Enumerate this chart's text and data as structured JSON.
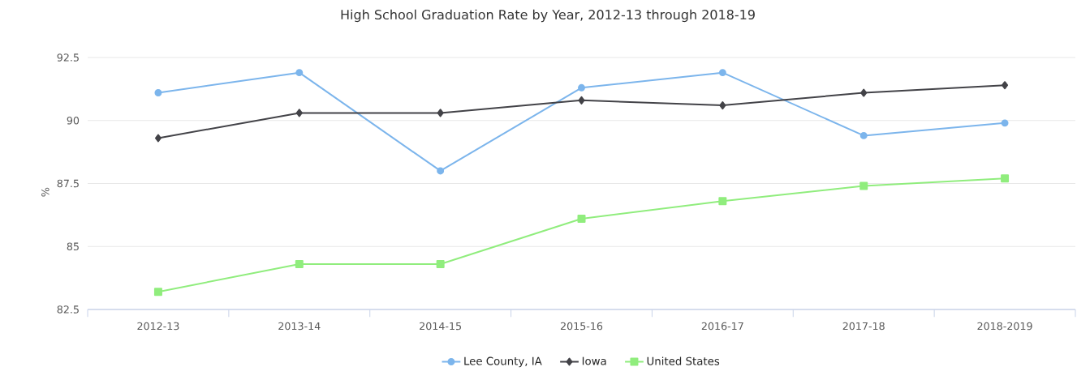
{
  "chart_data": {
    "type": "line",
    "title": "High School Graduation Rate by Year, 2012-13 through 2018-19",
    "ylabel": "%",
    "categories": [
      "2012-13",
      "2013-14",
      "2014-15",
      "2015-16",
      "2016-17",
      "2017-18",
      "2018-2019"
    ],
    "series": [
      {
        "name": "Lee County, IA",
        "color": "#7cb5ec",
        "marker": "circle",
        "values": [
          91.1,
          91.9,
          88.0,
          91.3,
          91.9,
          89.4,
          89.9
        ]
      },
      {
        "name": "Iowa",
        "color": "#434348",
        "marker": "diamond",
        "values": [
          89.3,
          90.3,
          90.3,
          90.8,
          90.6,
          91.1,
          91.4
        ]
      },
      {
        "name": "United States",
        "color": "#90ed7d",
        "marker": "square",
        "values": [
          83.2,
          84.3,
          84.3,
          86.1,
          86.8,
          87.4,
          87.7
        ]
      }
    ],
    "ylim": [
      82.5,
      92.5
    ],
    "yticks": [
      82.5,
      85,
      87.5,
      90,
      92.5
    ],
    "grid": "y",
    "legend": "bottom",
    "line_style": "solid"
  }
}
